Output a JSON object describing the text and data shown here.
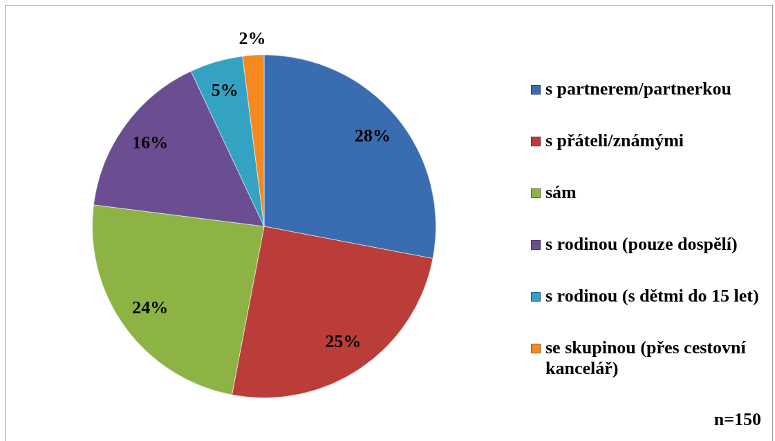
{
  "chart_data": {
    "type": "pie",
    "categories": [
      "s partnerem/partnerkou",
      "s přáteli/známými",
      "sám",
      "s rodinou (pouze dospělí)",
      "s rodinou (s dětmi do 15 let)",
      "se skupinou (přes cestovní kancelář)"
    ],
    "values": [
      28,
      25,
      24,
      16,
      5,
      2
    ],
    "colors": [
      "#3a6db0",
      "#bb3d3a",
      "#8db344",
      "#6b4e92",
      "#34a2c2",
      "#f3891f"
    ],
    "value_labels": [
      "28%",
      "25%",
      "24%",
      "16%",
      "5%",
      "2%"
    ],
    "legend": "right",
    "annotations": [
      "n=150"
    ]
  }
}
